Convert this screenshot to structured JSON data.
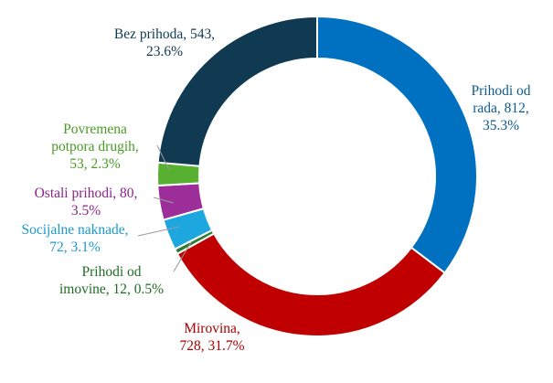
{
  "chart_data": {
    "type": "pie",
    "style": "donut",
    "slices": [
      {
        "name": "Prihodi od rada",
        "value": 812,
        "percent": "35.3%",
        "color": "#0070c0",
        "label_lines": [
          "Prihodi od",
          "rada, 812,",
          "35.3%"
        ]
      },
      {
        "name": "Mirovina",
        "value": 728,
        "percent": "31.7%",
        "color": "#c00000",
        "label_lines": [
          "Mirovina,",
          "728, 31.7%"
        ]
      },
      {
        "name": "Prihodi od imovine",
        "value": 12,
        "percent": "0.5%",
        "color": "#2e7d32",
        "label_lines": [
          "Prihodi od",
          "imovine, 12, 0.5%"
        ]
      },
      {
        "name": "Socijalne naknade",
        "value": 72,
        "percent": "3.1%",
        "color": "#1ea7df",
        "label_lines": [
          "Socijalne naknade,",
          "72, 3.1%"
        ]
      },
      {
        "name": "Ostali prihodi",
        "value": 80,
        "percent": "3.5%",
        "color": "#9b2e99",
        "label_lines": [
          "Ostali prihodi, 80,",
          "3.5%"
        ]
      },
      {
        "name": "Povremena potpora drugih",
        "value": 53,
        "percent": "2.3%",
        "color": "#58b030",
        "label_lines": [
          "Povremena",
          "potpora drugih,",
          "53, 2.3%"
        ]
      },
      {
        "name": "Bez prihoda",
        "value": 543,
        "percent": "23.6%",
        "color": "#0f3a52",
        "label_lines": [
          "Bez prihoda, 543,",
          "23.6%"
        ]
      }
    ]
  }
}
